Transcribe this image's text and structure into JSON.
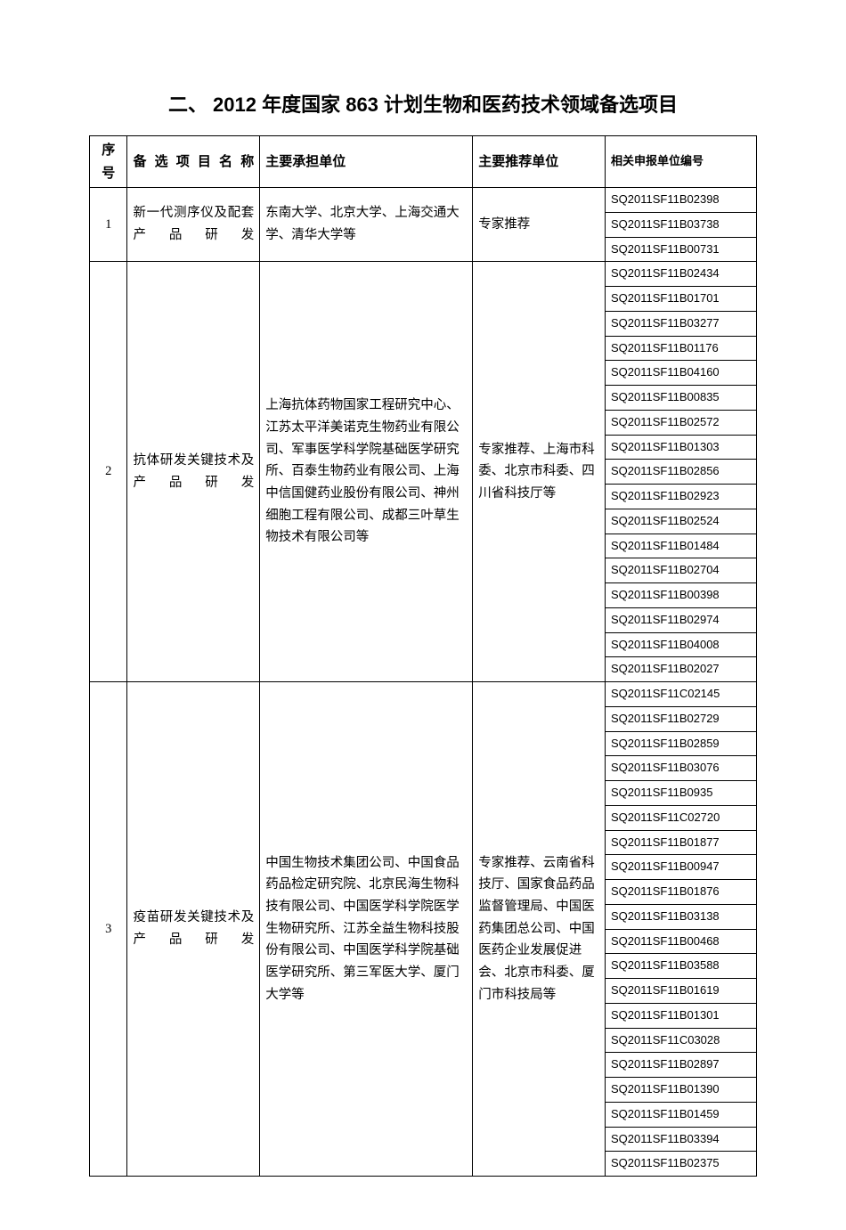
{
  "title": "二、 2012 年度国家 863 计划生物和医药技术领域备选项目",
  "headers": {
    "seq": "序号",
    "name": "备选项目名称",
    "org": "主要承担单位",
    "rec": "主要推荐单位",
    "code": "相关申报单位编号"
  },
  "rows": [
    {
      "seq": "1",
      "name": "新一代测序仪及配套产品研发",
      "org": "东南大学、北京大学、上海交通大学、清华大学等",
      "rec": "专家推荐",
      "codes": [
        "SQ2011SF11B02398",
        "SQ2011SF11B03738",
        "SQ2011SF11B00731"
      ]
    },
    {
      "seq": "2",
      "name": "抗体研发关键技术及产品研发",
      "org": "上海抗体药物国家工程研究中心、江苏太平洋美诺克生物药业有限公司、军事医学科学院基础医学研究所、百泰生物药业有限公司、上海中信国健药业股份有限公司、神州细胞工程有限公司、成都三叶草生物技术有限公司等",
      "rec": "专家推荐、上海市科委、北京市科委、四川省科技厅等",
      "codes": [
        "SQ2011SF11B02434",
        "SQ2011SF11B01701",
        "SQ2011SF11B03277",
        "SQ2011SF11B01176",
        "SQ2011SF11B04160",
        "SQ2011SF11B00835",
        "SQ2011SF11B02572",
        "SQ2011SF11B01303",
        "SQ2011SF11B02856",
        "SQ2011SF11B02923",
        "SQ2011SF11B02524",
        "SQ2011SF11B01484",
        "SQ2011SF11B02704",
        "SQ2011SF11B00398",
        "SQ2011SF11B02974",
        "SQ2011SF11B04008",
        "SQ2011SF11B02027"
      ]
    },
    {
      "seq": "3",
      "name": "疫苗研发关键技术及产品研发",
      "org": "中国生物技术集团公司、中国食品药品检定研究院、北京民海生物科技有限公司、中国医学科学院医学生物研究所、江苏全益生物科技股份有限公司、中国医学科学院基础医学研究所、第三军医大学、厦门大学等",
      "rec": "专家推荐、云南省科技厅、国家食品药品监督管理局、中国医药集团总公司、中国医药企业发展促进会、北京市科委、厦门市科技局等",
      "codes": [
        "SQ2011SF11C02145",
        "SQ2011SF11B02729",
        "SQ2011SF11B02859",
        "SQ2011SF11B03076",
        "SQ2011SF11B0935",
        "SQ2011SF11C02720",
        "SQ2011SF11B01877",
        "SQ2011SF11B00947",
        "SQ2011SF11B01876",
        "SQ2011SF11B03138",
        "SQ2011SF11B00468",
        "SQ2011SF11B03588",
        "SQ2011SF11B01619",
        "SQ2011SF11B01301",
        "SQ2011SF11C03028",
        "SQ2011SF11B02897",
        "SQ2011SF11B01390",
        "SQ2011SF11B01459",
        "SQ2011SF11B03394",
        "SQ2011SF11B02375"
      ]
    }
  ]
}
